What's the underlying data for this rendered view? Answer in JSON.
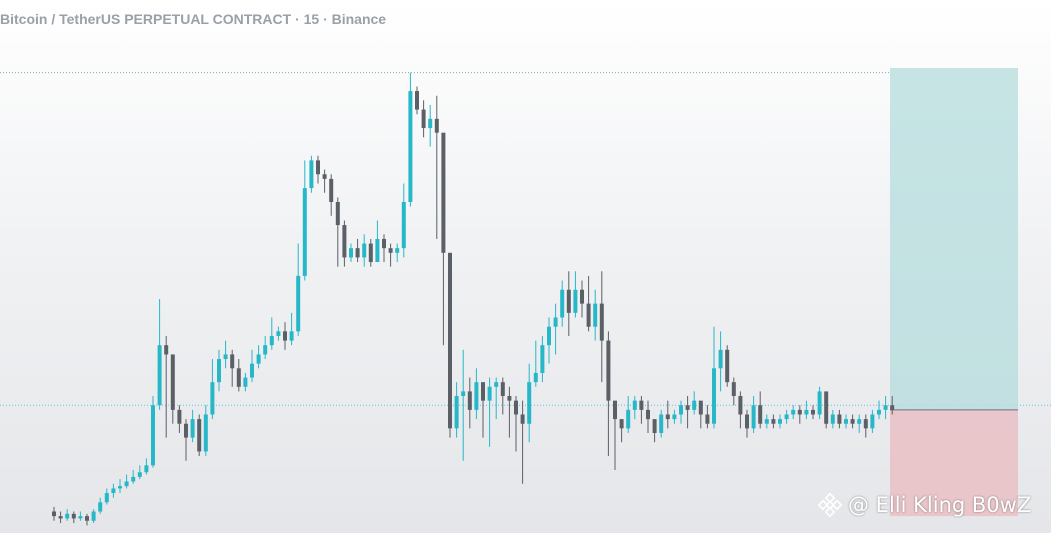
{
  "title": "Bitcoin / TetherUS PERPETUAL CONTRACT · 15 · Binance",
  "watermark": "@ Elli Kling B0wZ",
  "colors": {
    "up": "#26b7c9",
    "down": "#5b5f66",
    "profit_zone": "#b4dcdc",
    "loss_zone": "#e9c2c6",
    "dotted_line": "#9aa0a8",
    "price_line": "#5fc7d3"
  },
  "chart_data": {
    "type": "candlestick",
    "timeframe": "15",
    "exchange": "Binance",
    "y_range": [
      0,
      100
    ],
    "grid": false,
    "position_tool": {
      "entry": 26,
      "target": 100,
      "stop": 3
    },
    "reference_lines": {
      "high": 99,
      "price": 27
    },
    "candles": [
      [
        4,
        3,
        5,
        2
      ],
      [
        3,
        2.5,
        4,
        1.5
      ],
      [
        2.5,
        3.5,
        4.5,
        2
      ],
      [
        3.5,
        2.5,
        4,
        1.5
      ],
      [
        2.5,
        3,
        4,
        2
      ],
      [
        3,
        2,
        3.5,
        1
      ],
      [
        2,
        4,
        4.5,
        1.5
      ],
      [
        4,
        6,
        7,
        3.5
      ],
      [
        6,
        8,
        9,
        5.5
      ],
      [
        8,
        9,
        10,
        7
      ],
      [
        9,
        9.5,
        11,
        8
      ],
      [
        9.5,
        10.5,
        12,
        9
      ],
      [
        10.5,
        11.5,
        13,
        10
      ],
      [
        11.5,
        12.5,
        14,
        11
      ],
      [
        12.5,
        14,
        15.5,
        12
      ],
      [
        14,
        27,
        29,
        13.5
      ],
      [
        27,
        40,
        50,
        26
      ],
      [
        40,
        38,
        42,
        20
      ],
      [
        38,
        26,
        31,
        23
      ],
      [
        26,
        23,
        27,
        21
      ],
      [
        23,
        20,
        24,
        15
      ],
      [
        20,
        24,
        26,
        19
      ],
      [
        24,
        17,
        25,
        16
      ],
      [
        17,
        25,
        27,
        16
      ],
      [
        25,
        32,
        37,
        24
      ],
      [
        32,
        37,
        39,
        30
      ],
      [
        37,
        38,
        41,
        35
      ],
      [
        38,
        35,
        39,
        31
      ],
      [
        35,
        31,
        37,
        30
      ],
      [
        31,
        33,
        34,
        30
      ],
      [
        33,
        36,
        39,
        32
      ],
      [
        36,
        38,
        40,
        35
      ],
      [
        38,
        40,
        42,
        37
      ],
      [
        40,
        42,
        46,
        39
      ],
      [
        42,
        43,
        44,
        41
      ],
      [
        43,
        41,
        45,
        39
      ],
      [
        41,
        43,
        47,
        40
      ],
      [
        43,
        55,
        62,
        42
      ],
      [
        55,
        74,
        80,
        54
      ],
      [
        74,
        80,
        81,
        73
      ],
      [
        80,
        77,
        81,
        75
      ],
      [
        77,
        76,
        78,
        73
      ],
      [
        76,
        71,
        77,
        68
      ],
      [
        71,
        66,
        72,
        57
      ],
      [
        66,
        59,
        67,
        57
      ],
      [
        59,
        61,
        62,
        58
      ],
      [
        61,
        59,
        63,
        58
      ],
      [
        59,
        62,
        64,
        57
      ],
      [
        62,
        58,
        63,
        57
      ],
      [
        58,
        63,
        67,
        58
      ],
      [
        63,
        61,
        64,
        58
      ],
      [
        61,
        60,
        62,
        57
      ],
      [
        60,
        61,
        62,
        58
      ],
      [
        61,
        71,
        75,
        59
      ],
      [
        71,
        95,
        99,
        70
      ],
      [
        95,
        91,
        96,
        90
      ],
      [
        91,
        87,
        93,
        85
      ],
      [
        87,
        89,
        92,
        83
      ],
      [
        89,
        86,
        94,
        63
      ],
      [
        86,
        60,
        64,
        40
      ],
      [
        60,
        22,
        32,
        20
      ],
      [
        22,
        29,
        32,
        20
      ],
      [
        29,
        30,
        39,
        15
      ],
      [
        30,
        26,
        33,
        22
      ],
      [
        26,
        32,
        35,
        24
      ],
      [
        32,
        28,
        31,
        20
      ],
      [
        28,
        31,
        33,
        18
      ],
      [
        31,
        32,
        33,
        24
      ],
      [
        32,
        29,
        33,
        25
      ],
      [
        29,
        28,
        31,
        20
      ],
      [
        28,
        25,
        29,
        17
      ],
      [
        25,
        23,
        28,
        10
      ],
      [
        23,
        32,
        36,
        19
      ],
      [
        32,
        34,
        41,
        31
      ],
      [
        34,
        40,
        42,
        32
      ],
      [
        40,
        44,
        46,
        36
      ],
      [
        44,
        46,
        49,
        38
      ],
      [
        46,
        52,
        54,
        44
      ],
      [
        52,
        47,
        56,
        42
      ],
      [
        47,
        52,
        56,
        46
      ],
      [
        52,
        49,
        54,
        46
      ],
      [
        49,
        44,
        55,
        43
      ],
      [
        44,
        49,
        52,
        41
      ],
      [
        49,
        41,
        56,
        32
      ],
      [
        41,
        28,
        43,
        16
      ],
      [
        28,
        24,
        26,
        13
      ],
      [
        24,
        22,
        24,
        19
      ],
      [
        22,
        26,
        29,
        21
      ],
      [
        26,
        28,
        29,
        24
      ],
      [
        28,
        26,
        29,
        23
      ],
      [
        26,
        24,
        28,
        21
      ],
      [
        24,
        21,
        24,
        19
      ],
      [
        21,
        25,
        26,
        20
      ],
      [
        25,
        24,
        28,
        22
      ],
      [
        24,
        25,
        26,
        23
      ],
      [
        25,
        27,
        28,
        23
      ],
      [
        27,
        26,
        29,
        22
      ],
      [
        26,
        28,
        30,
        25
      ],
      [
        28,
        25,
        26,
        22
      ],
      [
        25,
        23,
        27,
        22
      ],
      [
        23,
        35,
        44,
        22
      ],
      [
        35,
        39,
        43,
        30
      ],
      [
        39,
        32,
        40,
        31
      ],
      [
        32,
        29,
        33,
        27
      ],
      [
        29,
        25,
        30,
        22
      ],
      [
        25,
        22,
        26,
        20
      ],
      [
        22,
        27,
        29,
        21
      ],
      [
        27,
        23,
        30,
        22
      ],
      [
        23,
        24,
        25,
        22
      ],
      [
        24,
        23,
        25,
        22
      ],
      [
        23,
        24,
        25,
        22
      ],
      [
        24,
        25,
        26,
        23
      ],
      [
        25,
        26,
        27,
        24
      ],
      [
        26,
        25,
        27,
        23
      ],
      [
        25,
        26,
        28,
        24
      ],
      [
        26,
        25,
        27,
        24
      ],
      [
        25,
        30,
        31,
        24
      ],
      [
        30,
        23,
        26,
        22
      ],
      [
        23,
        25,
        26,
        22
      ],
      [
        25,
        23,
        26,
        22
      ],
      [
        23,
        24,
        25,
        22
      ],
      [
        24,
        23,
        25,
        22
      ],
      [
        23,
        24,
        25,
        21
      ],
      [
        24,
        22,
        25,
        20
      ],
      [
        22,
        25,
        26,
        21
      ],
      [
        25,
        26,
        28,
        24
      ],
      [
        26,
        27,
        29,
        24
      ],
      [
        27,
        26,
        29,
        25
      ]
    ]
  }
}
